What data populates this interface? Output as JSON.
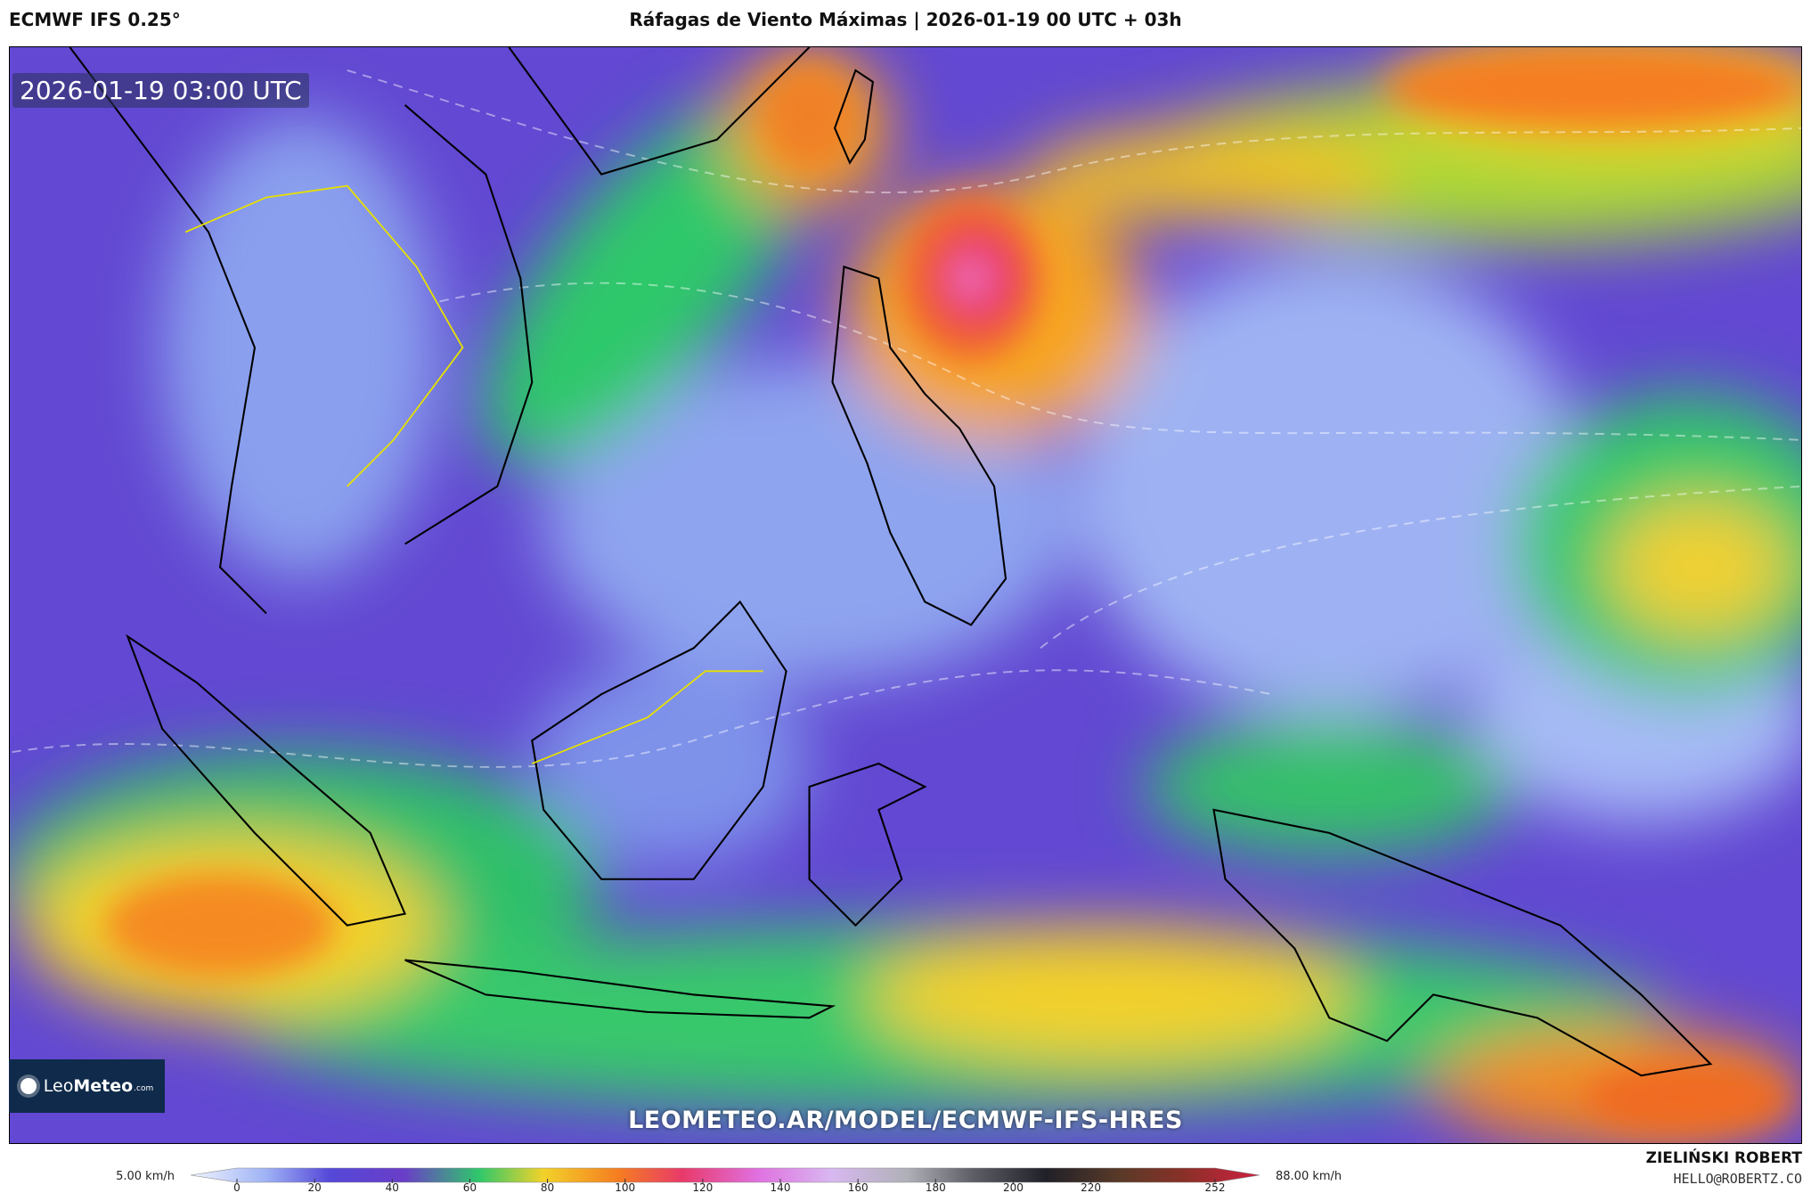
{
  "header": {
    "model": "ECMWF IFS 0.25°",
    "title": "Ráfagas de Viento Máximas | 2026-01-19 00 UTC + 03h"
  },
  "map": {
    "valid_time": "2026-01-19 03:00 UTC",
    "logo_a": "Leo",
    "logo_b": "Meteo",
    "logo_domain": ".com",
    "watermark": "LEOMETEO.AR/MODEL/ECMWF-IFS-HRES"
  },
  "colorbar": {
    "min_label": "5.00 km/h",
    "max_label": "88.00 km/h",
    "ticks": [
      0,
      20,
      40,
      60,
      80,
      100,
      120,
      140,
      160,
      180,
      200,
      220,
      252
    ]
  },
  "credits": {
    "author": "ZIELIŃSKI ROBERT",
    "email": "HELLO@ROBERTZ.CO"
  }
}
